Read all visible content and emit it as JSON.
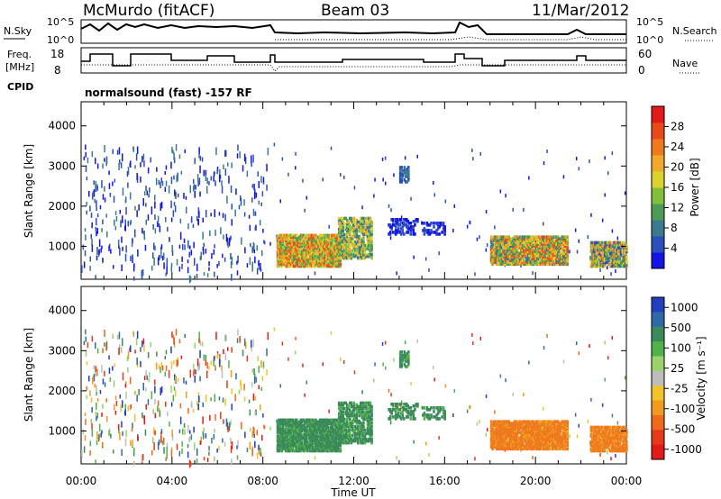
{
  "header": {
    "station": "McMurdo (fitACF)",
    "beam": "Beam 03",
    "date": "11/Mar/2012"
  },
  "status_panels": {
    "left_labels": {
      "nsky": "N.Sky",
      "freq_line1": "Freq.",
      "freq_line2": "[MHz]",
      "cpid": "CPID"
    },
    "right_labels": {
      "nsearch": "N.Search",
      "nave": "Nave"
    },
    "noise_ticks_left": [
      "10^5",
      "10^0"
    ],
    "noise_ticks_right": [
      "10^5",
      "10^0"
    ],
    "freq_ticks": [
      "18",
      "8"
    ],
    "nave_ticks": [
      "60",
      "0"
    ],
    "cpid_text": "normalsound (fast) -157 RF"
  },
  "chart_data": [
    {
      "type": "heatmap",
      "name": "power",
      "ylabel": "Slant Range [km]",
      "xlabel": "",
      "ylim": [
        180,
        4600
      ],
      "x_range_hours": [
        0,
        24
      ],
      "x_ticks": [
        "00:00",
        "04:00",
        "08:00",
        "12:00",
        "16:00",
        "20:00",
        "00:00"
      ],
      "y_ticks": [
        "1000",
        "2000",
        "3000",
        "4000"
      ],
      "colorbar": {
        "label": "Power [dB]",
        "ticks": [
          "4",
          "8",
          "12",
          "16",
          "20",
          "24",
          "28"
        ],
        "colors": [
          "#1414e6",
          "#2b4fbd",
          "#3b7a8c",
          "#4d9a57",
          "#7fbf3a",
          "#d9d32b",
          "#f2a82a",
          "#ef7a1e",
          "#ea4a1a",
          "#e41a1a"
        ]
      }
    },
    {
      "type": "heatmap",
      "name": "velocity",
      "ylabel": "Slant Range [km]",
      "xlabel": "Time UT",
      "ylim": [
        180,
        4600
      ],
      "x_range_hours": [
        0,
        24
      ],
      "x_ticks": [
        "00:00",
        "04:00",
        "08:00",
        "12:00",
        "16:00",
        "20:00",
        "00:00"
      ],
      "y_ticks": [
        "1000",
        "2000",
        "3000",
        "4000"
      ],
      "colorbar": {
        "label": "Velocity [m s⁻¹]",
        "ticks": [
          "1000",
          "500",
          "100",
          "25",
          "-25",
          "-100",
          "-500",
          "-1000"
        ],
        "colors": [
          "#2040c0",
          "#2e6aa8",
          "#3b8a5a",
          "#4fb34a",
          "#9ad36a",
          "#bdbdbd",
          "#f2c42a",
          "#f29a1e",
          "#ef6a1a",
          "#e43a1a",
          "#e41a1a"
        ]
      }
    }
  ]
}
